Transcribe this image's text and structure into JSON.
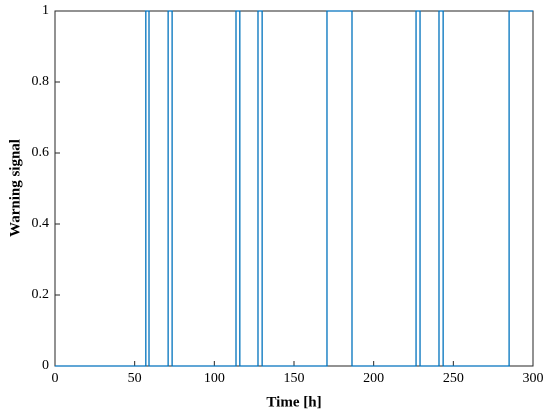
{
  "chart_data": {
    "type": "line",
    "x_label": "Time [h]",
    "y_label": "Warning signal",
    "series": [
      {
        "color": "#0072bd",
        "x": [
          0,
          57,
          57,
          59,
          59,
          71,
          71,
          73.5,
          73.5,
          113.6,
          113.6,
          116,
          116,
          127.4,
          127.4,
          130,
          130,
          170.7,
          170.7,
          186.4,
          186.4,
          226.6,
          226.6,
          229.1,
          229.1,
          241,
          241,
          243.6,
          243.6,
          285,
          285,
          300
        ],
        "values": [
          0,
          0,
          1,
          1,
          0,
          0,
          1,
          1,
          0,
          0,
          1,
          1,
          0,
          0,
          1,
          1,
          0,
          0,
          1,
          1,
          0,
          0,
          1,
          1,
          0,
          0,
          1,
          1,
          0,
          0,
          1,
          1
        ]
      }
    ],
    "xlim": [
      0,
      300
    ],
    "xticks": [
      0,
      50,
      100,
      150,
      200,
      250,
      300
    ],
    "ylim": [
      0,
      1
    ],
    "yticks": [
      0,
      0.2,
      0.4,
      0.6,
      0.8,
      1
    ]
  }
}
